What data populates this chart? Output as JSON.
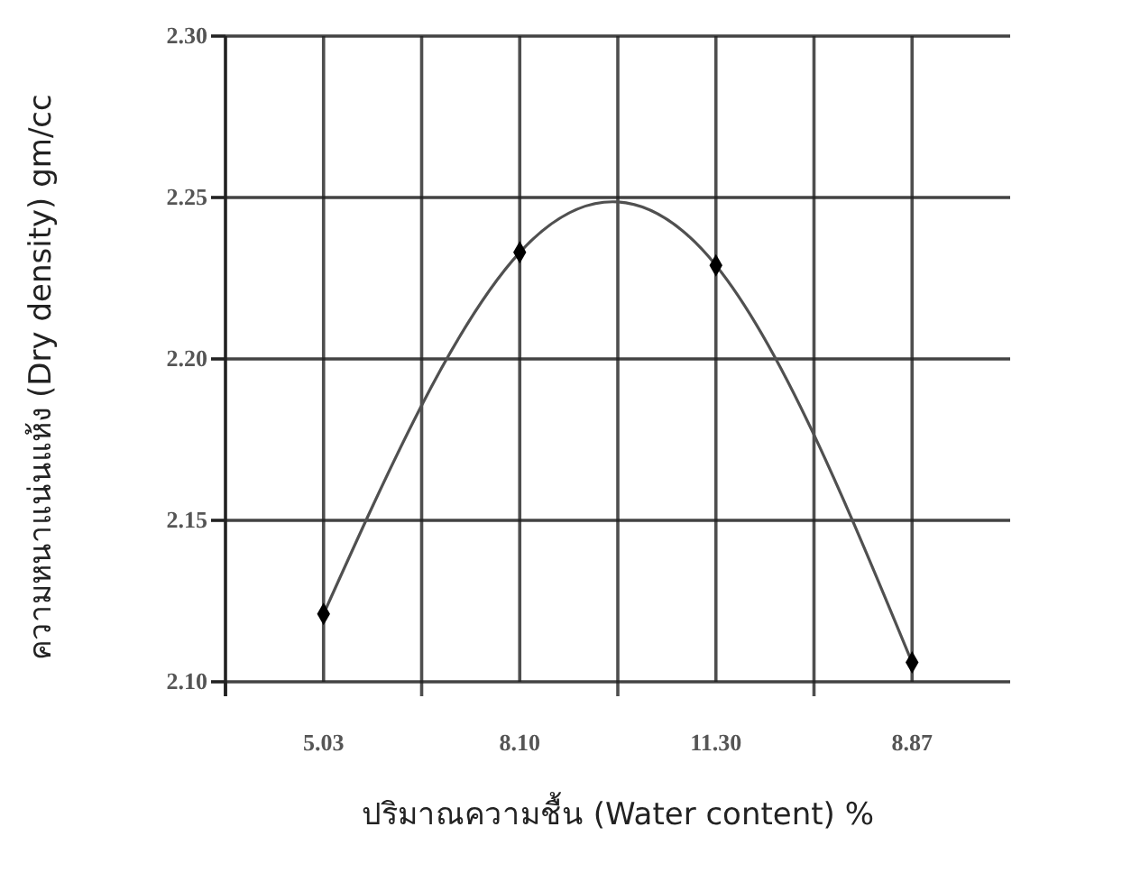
{
  "chart_data": {
    "type": "line",
    "xlabel": "ปริมาณความชื้น (Water content) %",
    "ylabel": "ความหนาแน่นแห้ง (Dry density) gm/cc",
    "categories": [
      "5.03",
      "8.10",
      "11.30",
      "8.87"
    ],
    "series": [
      {
        "color": "#505050",
        "values": [
          2.121,
          2.233,
          2.229,
          2.106
        ]
      }
    ],
    "ylim": [
      2.1,
      2.3
    ],
    "yticks": [
      {
        "value": 2.1,
        "label": "2.10"
      },
      {
        "value": 2.15,
        "label": "2.15"
      },
      {
        "value": 2.2,
        "label": "2.20"
      },
      {
        "value": 2.25,
        "label": "2.25"
      },
      {
        "value": 2.3,
        "label": "2.30"
      }
    ],
    "grid": true,
    "marker": "diamond",
    "line_style": "solid"
  }
}
